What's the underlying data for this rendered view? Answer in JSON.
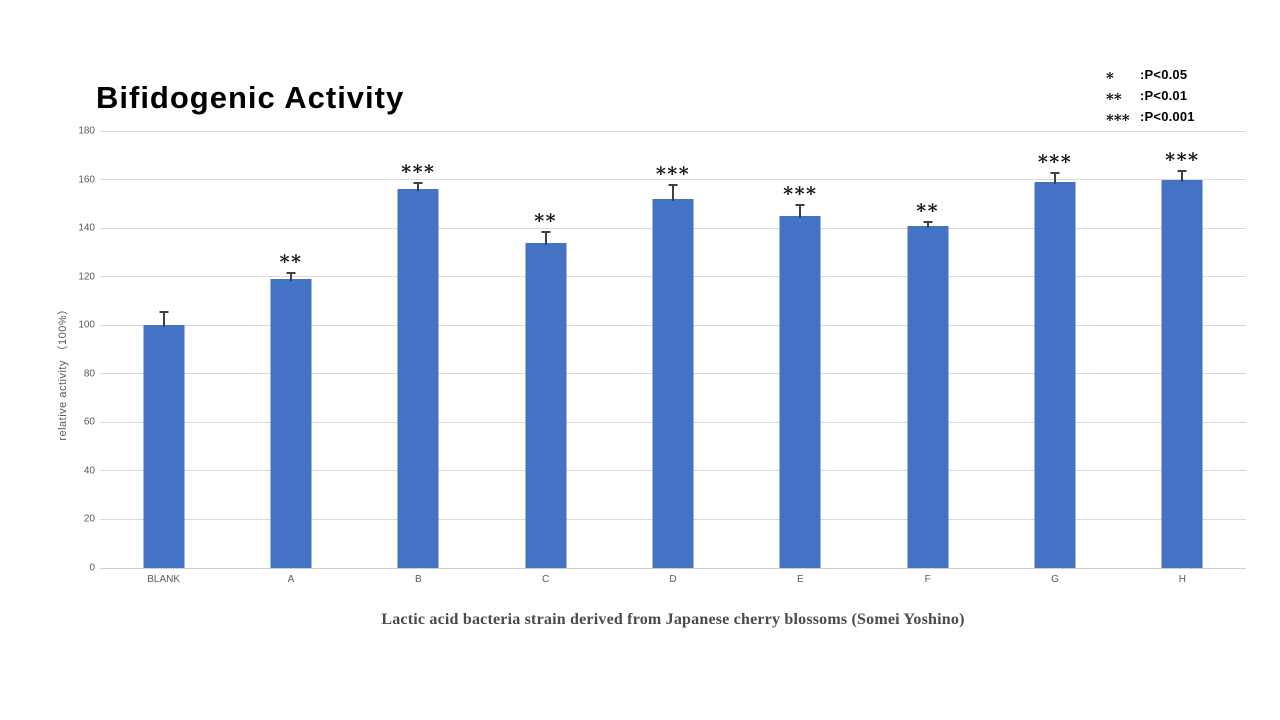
{
  "title": "Bifidogenic Activity",
  "legend": {
    "items": [
      {
        "stars": "*",
        "label": ":P<0.05"
      },
      {
        "stars": "**",
        "label": ":P<0.01"
      },
      {
        "stars": "***",
        "label": ":P<0.001"
      }
    ]
  },
  "chart_data": {
    "type": "bar",
    "title": "Bifidogenic Activity",
    "categories": [
      "BLANK",
      "A",
      "B",
      "C",
      "D",
      "E",
      "F",
      "G",
      "H"
    ],
    "values": [
      100,
      119,
      156,
      134,
      152,
      145,
      141,
      159,
      160
    ],
    "errors": [
      6,
      3,
      3,
      5,
      6,
      5,
      2,
      4,
      4
    ],
    "significance": [
      "",
      "**",
      "***",
      "**",
      "***",
      "***",
      "**",
      "***",
      "***"
    ],
    "ylabel": "relative activity （100%）",
    "xlabel": "Lactic acid bacteria strain derived from Japanese cherry blossoms (Somei Yoshino)",
    "ylim": [
      0,
      180
    ],
    "ytick_step": 20,
    "grid": true,
    "legend_position": "top-right",
    "bar_color": "#4472c4",
    "gridline_color": "#d9d9d9",
    "error_bar_color": "#3f3f3f"
  }
}
